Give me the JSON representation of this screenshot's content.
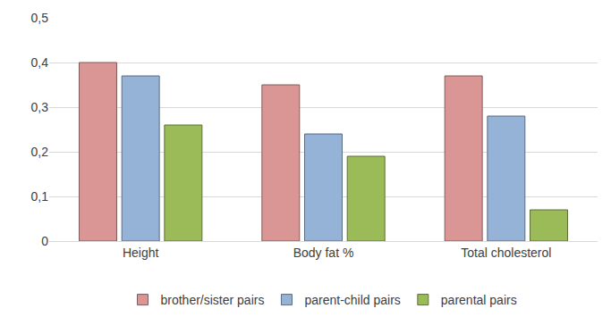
{
  "chart_data": {
    "type": "bar",
    "categories": [
      "Height",
      "Body fat %",
      "Total cholesterol"
    ],
    "series": [
      {
        "name": "brother/sister pairs",
        "color": "#da9694",
        "values": [
          0.4,
          0.35,
          0.37
        ]
      },
      {
        "name": "parent-child pairs",
        "color": "#95b3d7",
        "values": [
          0.37,
          0.24,
          0.28
        ]
      },
      {
        "name": "parental pairs",
        "color": "#9bbb59",
        "values": [
          0.26,
          0.19,
          0.07
        ]
      }
    ],
    "ylim": [
      0,
      0.5
    ],
    "yticks": [
      0,
      {
        "value": 0.1,
        "label": "0,1"
      },
      {
        "value": 0.2,
        "label": "0,2"
      },
      {
        "value": 0.3,
        "label": "0,3"
      },
      {
        "value": 0.4,
        "label": "0,4"
      },
      {
        "value": 0.5,
        "label": "0,5"
      }
    ],
    "grid": true,
    "legend": "bottom"
  }
}
